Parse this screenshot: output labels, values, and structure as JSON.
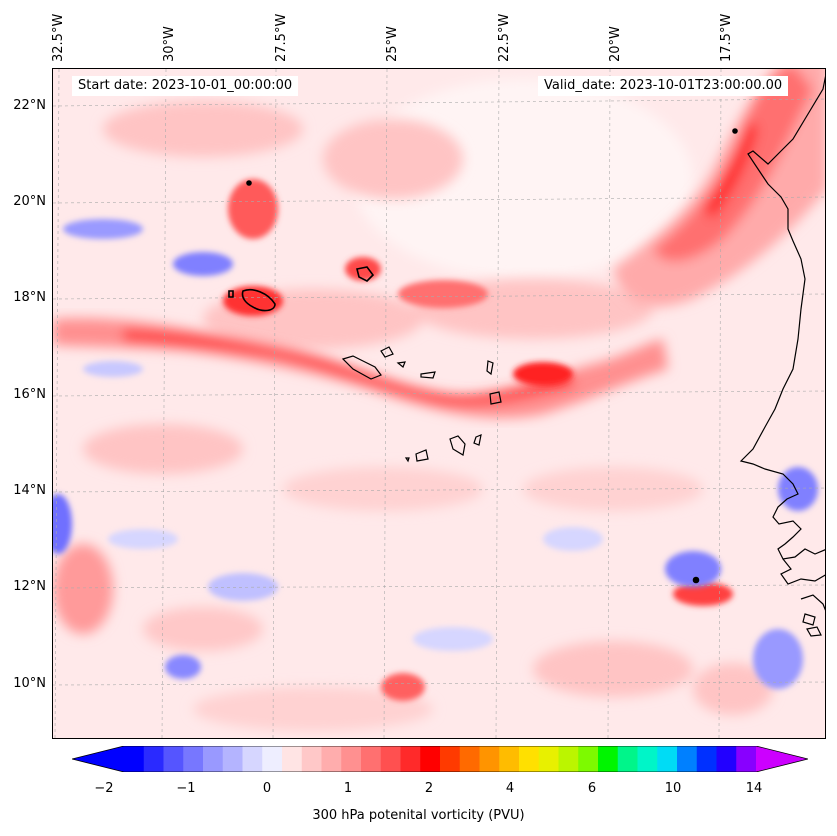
{
  "header": {
    "start_date": "Start date: 2023-10-01_00:00:00",
    "valid_date": "Valid_date: 2023-10-01T23:00:00.00"
  },
  "axes": {
    "longitude_labels": [
      "32.5°W",
      "30°W",
      "27.5°W",
      "25°W",
      "22.5°W",
      "20°W",
      "17.5°W"
    ],
    "latitude_labels": [
      "22°N",
      "20°N",
      "18°N",
      "16°N",
      "14°N",
      "12°N",
      "10°N"
    ]
  },
  "colorbar": {
    "title": "300 hPa potenital vorticity (PVU)",
    "tick_labels": [
      "−2",
      "−1",
      "0",
      "1",
      "2",
      "4",
      "6",
      "10",
      "14"
    ],
    "colors": [
      "#0000ff",
      "#2a2aff",
      "#5555ff",
      "#7777ff",
      "#9999ff",
      "#b4b4ff",
      "#d6d6ff",
      "#eeeeff",
      "#ffe4e4",
      "#ffc8c8",
      "#ffadad",
      "#ff9090",
      "#ff7070",
      "#ff5050",
      "#ff2a2a",
      "#ff0000",
      "#ff3a00",
      "#ff6a00",
      "#ff9400",
      "#ffbc00",
      "#ffe000",
      "#e8f000",
      "#bbf500",
      "#7dfa00",
      "#00f500",
      "#00f58a",
      "#00f5c8",
      "#00dcf5",
      "#0080ff",
      "#0030ff",
      "#2200ff",
      "#8800ff"
    ],
    "extend_min_color": "#0000ff",
    "extend_max_color": "#cc00ff"
  },
  "map_colors": {
    "background": "#ffe9ea",
    "light_pink": "#ffc4c4",
    "medium_red": "#ff8080",
    "strong_red": "#ff2020",
    "light_blue": "#c8c8ff",
    "medium_blue": "#7070ff",
    "coastline": "#000000",
    "gridline": "#aaaaaa"
  }
}
